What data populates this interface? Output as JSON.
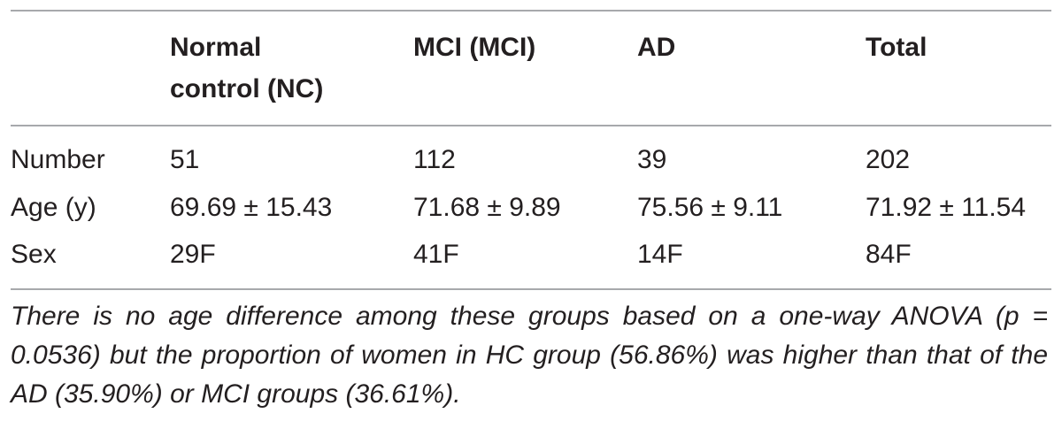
{
  "table": {
    "headers": [
      "",
      "Normal\ncontrol (NC)",
      "MCI (MCI)",
      "AD",
      "Total"
    ],
    "rows": [
      {
        "label": "Number",
        "nc": "51",
        "mci": "112",
        "ad": "39",
        "total": "202"
      },
      {
        "label": "Age (y)",
        "nc": "69.69 ± 15.43",
        "mci": "71.68 ± 9.89",
        "ad": "75.56 ± 9.11",
        "total": "71.92 ± 11.54"
      },
      {
        "label": "Sex",
        "nc": "29F",
        "mci": "41F",
        "ad": "14F",
        "total": "84F"
      }
    ]
  },
  "footnote": "There is no age difference among these groups based on a one-way ANOVA (p = 0.0536) but the proportion of women in HC group (56.86%) was higher than that of the AD (35.90%) or MCI groups (36.61%)."
}
